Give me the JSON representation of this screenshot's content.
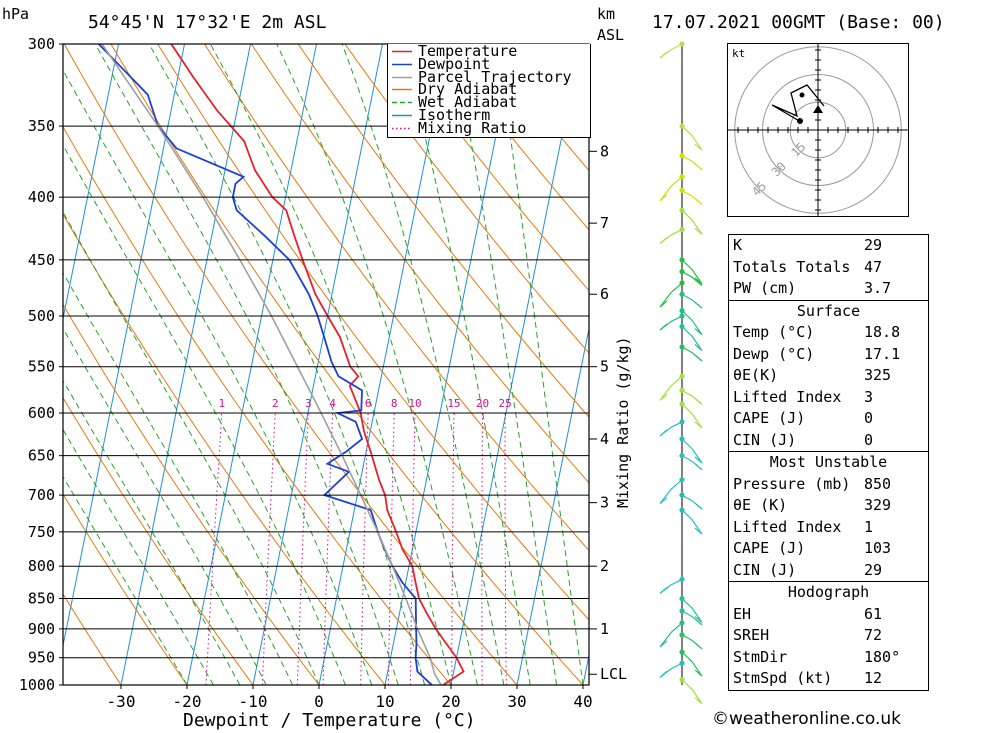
{
  "header": {
    "pressure_unit": "hPa",
    "location": "54°45'N 17°32'E 2m ASL",
    "height_unit_km": "km",
    "height_unit_asl": "ASL",
    "datetime": "17.07.2021 00GMT (Base: 00)"
  },
  "chart_data": {
    "type": "line",
    "subtype": "skew-t log-p",
    "xlabel": "Dewpoint / Temperature (°C)",
    "ylabel": "hPa",
    "secondary_ylabel": "Mixing Ratio (g/kg)",
    "xlim": [
      -40,
      40
    ],
    "ylim": [
      1000,
      300
    ],
    "x_ticks": [
      -30,
      -20,
      -10,
      0,
      10,
      20,
      30,
      40
    ],
    "pressure_ticks": [
      300,
      350,
      400,
      450,
      500,
      550,
      600,
      650,
      700,
      750,
      800,
      850,
      900,
      950,
      1000
    ],
    "km_ticks": [
      {
        "label": "8",
        "p": 367
      },
      {
        "label": "7",
        "p": 420
      },
      {
        "label": "6",
        "p": 480
      },
      {
        "label": "5",
        "p": 550
      },
      {
        "label": "4",
        "p": 630
      },
      {
        "label": "3",
        "p": 710
      },
      {
        "label": "2",
        "p": 800
      },
      {
        "label": "1",
        "p": 900
      },
      {
        "label": "LCL",
        "p": 980
      }
    ],
    "mixing_ratio_labels": [
      "1",
      "2",
      "3",
      "4",
      "6",
      "8",
      "10",
      "15",
      "20",
      "25"
    ],
    "mixing_ratio_values": [
      1,
      2,
      3,
      4,
      6,
      8,
      10,
      15,
      20,
      25
    ],
    "legend": [
      {
        "name": "Temperature",
        "color": "#e8202a",
        "style": "solid"
      },
      {
        "name": "Dewpoint",
        "color": "#1c3fd6",
        "style": "solid"
      },
      {
        "name": "Parcel Trajectory",
        "color": "#a0a0a0",
        "style": "solid"
      },
      {
        "name": "Dry Adiabat",
        "color": "#e07b10",
        "style": "solid"
      },
      {
        "name": "Wet Adiabat",
        "color": "#2aa02a",
        "style": "dashed"
      },
      {
        "name": "Isotherm",
        "color": "#1e90d6",
        "style": "solid"
      },
      {
        "name": "Mixing Ratio",
        "color": "#d0108a",
        "style": "dotted"
      }
    ],
    "series": [
      {
        "name": "Temperature",
        "color": "#e8202a",
        "points": [
          [
            1000,
            18.8
          ],
          [
            975,
            21.5
          ],
          [
            950,
            20.0
          ],
          [
            925,
            18.0
          ],
          [
            900,
            16.0
          ],
          [
            875,
            14.2
          ],
          [
            850,
            12.5
          ],
          [
            825,
            11.5
          ],
          [
            800,
            10.5
          ],
          [
            775,
            8.5
          ],
          [
            750,
            7.0
          ],
          [
            720,
            5.0
          ],
          [
            700,
            4.2
          ],
          [
            680,
            2.8
          ],
          [
            650,
            1.0
          ],
          [
            620,
            -1.0
          ],
          [
            600,
            -2.0
          ],
          [
            570,
            -4.5
          ],
          [
            560,
            -3.5
          ],
          [
            550,
            -5.0
          ],
          [
            520,
            -7.5
          ],
          [
            500,
            -10.0
          ],
          [
            480,
            -12.5
          ],
          [
            450,
            -15.5
          ],
          [
            430,
            -17.5
          ],
          [
            410,
            -19.5
          ],
          [
            400,
            -22.0
          ],
          [
            380,
            -25.5
          ],
          [
            360,
            -28.0
          ],
          [
            340,
            -33.0
          ],
          [
            320,
            -37.5
          ],
          [
            300,
            -42.0
          ]
        ]
      },
      {
        "name": "Dewpoint",
        "color": "#1c3fd6",
        "points": [
          [
            1000,
            17.1
          ],
          [
            975,
            14.5
          ],
          [
            950,
            13.8
          ],
          [
            925,
            13.5
          ],
          [
            900,
            13.0
          ],
          [
            875,
            12.5
          ],
          [
            850,
            12.0
          ],
          [
            825,
            9.5
          ],
          [
            800,
            7.5
          ],
          [
            775,
            5.8
          ],
          [
            750,
            4.2
          ],
          [
            720,
            2.5
          ],
          [
            700,
            -5.0
          ],
          [
            690,
            -4.0
          ],
          [
            670,
            -2.0
          ],
          [
            660,
            -5.5
          ],
          [
            645,
            -3.0
          ],
          [
            630,
            -1.0
          ],
          [
            610,
            -2.5
          ],
          [
            600,
            -5.5
          ],
          [
            597,
            -2.0
          ],
          [
            575,
            -2.5
          ],
          [
            560,
            -6.5
          ],
          [
            545,
            -8.0
          ],
          [
            525,
            -9.5
          ],
          [
            500,
            -11.5
          ],
          [
            480,
            -13.5
          ],
          [
            450,
            -17.5
          ],
          [
            430,
            -22.0
          ],
          [
            410,
            -27.0
          ],
          [
            400,
            -28.0
          ],
          [
            390,
            -28.0
          ],
          [
            385,
            -27.0
          ],
          [
            365,
            -38.0
          ],
          [
            350,
            -41.5
          ],
          [
            330,
            -44.0
          ],
          [
            300,
            -53.0
          ]
        ]
      },
      {
        "name": "Parcel Trajectory",
        "color": "#a0a0a0",
        "points": [
          [
            1000,
            18.5
          ],
          [
            980,
            17.2
          ],
          [
            950,
            16.0
          ],
          [
            900,
            13.2
          ],
          [
            850,
            10.5
          ],
          [
            800,
            7.5
          ],
          [
            750,
            4.2
          ],
          [
            700,
            0.5
          ],
          [
            650,
            -3.5
          ],
          [
            600,
            -8.0
          ],
          [
            550,
            -13.0
          ],
          [
            500,
            -18.5
          ],
          [
            450,
            -25.0
          ],
          [
            400,
            -32.5
          ],
          [
            350,
            -41.5
          ],
          [
            300,
            -52.5
          ]
        ]
      }
    ],
    "wind_barbs": [
      {
        "p": 300,
        "color": "#b8e04a"
      },
      {
        "p": 350,
        "color": "#b8e04a"
      },
      {
        "p": 370,
        "color": "#d0e000"
      },
      {
        "p": 385,
        "color": "#d0e000"
      },
      {
        "p": 395,
        "color": "#d0e000"
      },
      {
        "p": 410,
        "color": "#a0e040"
      },
      {
        "p": 425,
        "color": "#a0e040"
      },
      {
        "p": 450,
        "color": "#22c040"
      },
      {
        "p": 460,
        "color": "#22c040"
      },
      {
        "p": 470,
        "color": "#22c040"
      },
      {
        "p": 480,
        "color": "#22c080"
      },
      {
        "p": 495,
        "color": "#22c080"
      },
      {
        "p": 500,
        "color": "#22c080"
      },
      {
        "p": 510,
        "color": "#22c0a0"
      },
      {
        "p": 530,
        "color": "#22c060"
      },
      {
        "p": 560,
        "color": "#a0e040"
      },
      {
        "p": 575,
        "color": "#a0e040"
      },
      {
        "p": 590,
        "color": "#a0e040"
      },
      {
        "p": 610,
        "color": "#22c0c0"
      },
      {
        "p": 630,
        "color": "#22c0c0"
      },
      {
        "p": 650,
        "color": "#22c0c0"
      },
      {
        "p": 680,
        "color": "#22c0c0"
      },
      {
        "p": 700,
        "color": "#22c0a0"
      },
      {
        "p": 720,
        "color": "#22c0c0"
      },
      {
        "p": 820,
        "color": "#22c0c0"
      },
      {
        "p": 850,
        "color": "#22c0a0"
      },
      {
        "p": 870,
        "color": "#22c0a0"
      },
      {
        "p": 890,
        "color": "#22c080"
      },
      {
        "p": 910,
        "color": "#22c060"
      },
      {
        "p": 940,
        "color": "#22c060"
      },
      {
        "p": 960,
        "color": "#22c0c0"
      },
      {
        "p": 990,
        "color": "#a0e040"
      }
    ]
  },
  "hodograph": {
    "unit": "kt",
    "ring_labels": [
      "15",
      "30",
      "45"
    ],
    "ring_values": [
      15,
      30,
      45
    ]
  },
  "stats": {
    "index": [
      {
        "label": "K",
        "value": "29"
      },
      {
        "label": "Totals Totals",
        "value": "47"
      },
      {
        "label": "PW (cm)",
        "value": "3.7"
      }
    ],
    "surface": {
      "title": "Surface",
      "rows": [
        {
          "label": "Temp (°C)",
          "value": "18.8"
        },
        {
          "label": "Dewp (°C)",
          "value": "17.1"
        },
        {
          "label": "θE(K)",
          "value": "325"
        },
        {
          "label": "Lifted Index",
          "value": "3"
        },
        {
          "label": "CAPE (J)",
          "value": "0"
        },
        {
          "label": "CIN (J)",
          "value": "0"
        }
      ]
    },
    "most_unstable": {
      "title": "Most Unstable",
      "rows": [
        {
          "label": "Pressure (mb)",
          "value": "850"
        },
        {
          "label": "θE (K)",
          "value": "329"
        },
        {
          "label": "Lifted Index",
          "value": "1"
        },
        {
          "label": "CAPE (J)",
          "value": "103"
        },
        {
          "label": "CIN (J)",
          "value": "29"
        }
      ]
    },
    "hodograph": {
      "title": "Hodograph",
      "rows": [
        {
          "label": "EH",
          "value": "61"
        },
        {
          "label": "SREH",
          "value": "72"
        },
        {
          "label": "StmDir",
          "value": "180°"
        },
        {
          "label": "StmSpd (kt)",
          "value": "12"
        }
      ]
    }
  },
  "footer": {
    "copyright": "©weatheronline.co.uk"
  }
}
